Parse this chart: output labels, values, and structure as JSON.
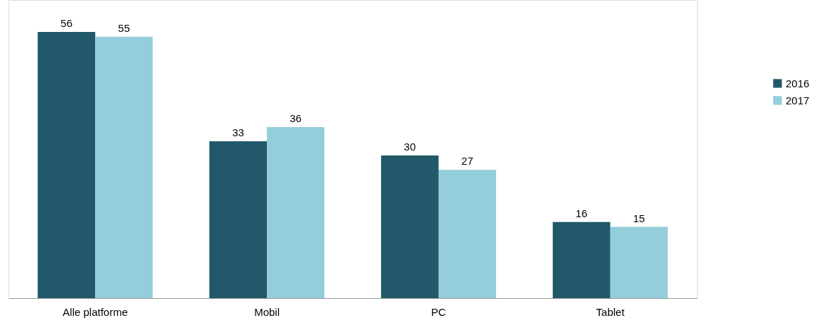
{
  "chart_data": {
    "type": "bar",
    "categories": [
      "Alle platforme",
      "Mobil",
      "PC",
      "Tablet"
    ],
    "series": [
      {
        "name": "2016",
        "color": "#22596a",
        "values": [
          56,
          33,
          30,
          16
        ]
      },
      {
        "name": "2017",
        "color": "#94cedb",
        "values": [
          55,
          36,
          27,
          15
        ]
      }
    ],
    "data_labels": true,
    "legend": "right",
    "grid": false
  }
}
